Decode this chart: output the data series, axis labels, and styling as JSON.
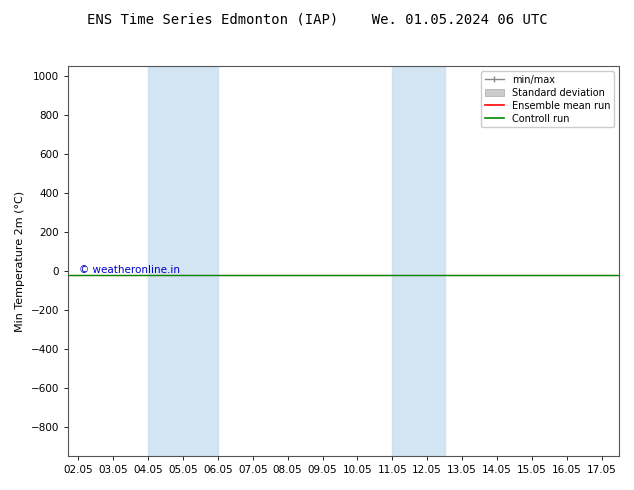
{
  "title": "ENS Time Series Edmonton (IAP)    We. 01.05.2024 06 UTC",
  "ylabel": "Min Temperature 2m (°C)",
  "ylim_top": -950,
  "ylim_bottom": 1050,
  "yticks": [
    -800,
    -600,
    -400,
    -200,
    0,
    200,
    400,
    600,
    800,
    1000
  ],
  "xtick_labels": [
    "02.05",
    "03.05",
    "04.05",
    "05.05",
    "06.05",
    "07.05",
    "08.05",
    "09.05",
    "10.05",
    "11.05",
    "12.05",
    "13.05",
    "14.05",
    "15.05",
    "16.05",
    "17.05"
  ],
  "x_positions": [
    2,
    3,
    4,
    5,
    6,
    7,
    8,
    9,
    10,
    11,
    12,
    13,
    14,
    15,
    16,
    17
  ],
  "shaded_bands": [
    {
      "x_start": 4,
      "x_end": 6,
      "color": "#cce0f0",
      "alpha": 0.85
    },
    {
      "x_start": 11,
      "x_end": 12.5,
      "color": "#cce0f0",
      "alpha": 0.85
    }
  ],
  "control_run_y": -20,
  "ensemble_mean_y": -20,
  "background_color": "#ffffff",
  "plot_bg_color": "#ffffff",
  "legend_items": [
    "min/max",
    "Standard deviation",
    "Ensemble mean run",
    "Controll run"
  ],
  "legend_colors": [
    "#888888",
    "#bbbbbb",
    "#ff0000",
    "#008800"
  ],
  "copyright_text": "© weatheronline.in",
  "copyright_color": "#0000cc",
  "title_fontsize": 10,
  "axis_label_fontsize": 8,
  "tick_fontsize": 7.5,
  "legend_fontsize": 7,
  "x_min": 2,
  "x_max": 17
}
